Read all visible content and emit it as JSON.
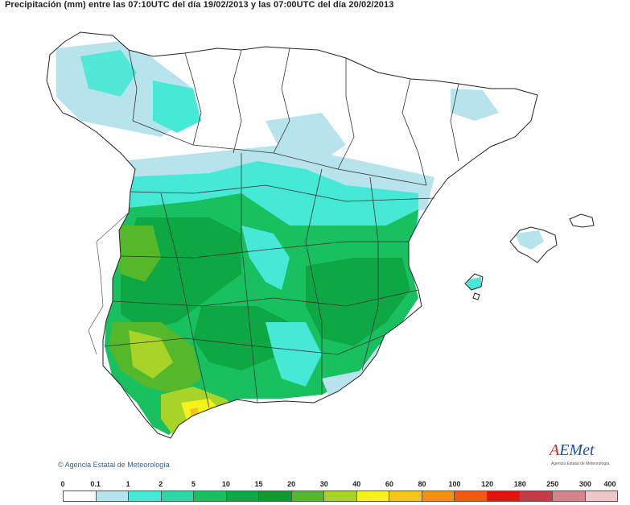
{
  "title": "Precipitación (mm) entre las 07:10UTC del día 19/02/2013 y las 07:00UTC del día 20/02/2013",
  "credit": "Agencia Estatal de Meteorología",
  "logo": {
    "name": "AEMet",
    "subtitle": "Agencia Estatal de Meteorología"
  },
  "legend": {
    "ticks": [
      "0",
      "0.1",
      "1",
      "2",
      "5",
      "10",
      "15",
      "20",
      "30",
      "40",
      "60",
      "80",
      "100",
      "120",
      "180",
      "250",
      "300",
      "400"
    ],
    "colors": [
      "#ffffff",
      "#b6e3ec",
      "#46e8d6",
      "#2dd6a2",
      "#19c060",
      "#0da844",
      "#109a2c",
      "#55b82a",
      "#a8d428",
      "#f6f21a",
      "#f6c41a",
      "#f48e14",
      "#f25a10",
      "#e4140c",
      "#c43c48",
      "#d6848c",
      "#f0c8cc"
    ]
  }
}
